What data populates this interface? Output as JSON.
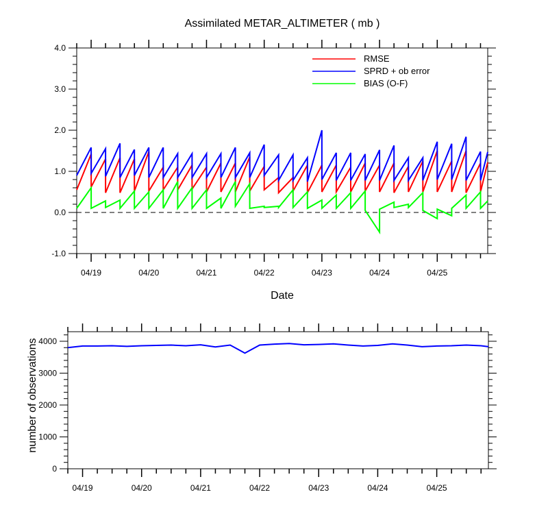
{
  "chart_data": [
    {
      "type": "line",
      "title": "Assimilated METAR_ALTIMETER ( mb )",
      "xlabel": "Date",
      "ylabel": "",
      "ylim": [
        -1.0,
        4.0
      ],
      "yticks": [
        -1.0,
        0.0,
        1.0,
        2.0,
        3.0,
        4.0
      ],
      "ytick_labels": [
        "-1.0",
        "0.0",
        "1.0",
        "2.0",
        "3.0",
        "4.0"
      ],
      "xlim": [
        18.75,
        25.875
      ],
      "xticks": [
        19,
        20,
        21,
        22,
        23,
        24,
        25
      ],
      "xtick_labels": [
        "04/19",
        "04/20",
        "04/21",
        "04/22",
        "04/23",
        "04/24",
        "04/25"
      ],
      "reference_line": {
        "y": 0.0,
        "style": "dashed"
      },
      "legend": {
        "position": "top-right"
      },
      "series": [
        {
          "name": "RMSE",
          "color": "#ff0000",
          "x": [
            18.75,
            19.0,
            19.0,
            19.25,
            19.25,
            19.5,
            19.5,
            19.75,
            19.75,
            20.0,
            20.0,
            20.25,
            20.25,
            20.5,
            20.5,
            20.75,
            20.75,
            21.0,
            21.0,
            21.25,
            21.25,
            21.5,
            21.5,
            21.75,
            21.75,
            22.0,
            22.0,
            22.25,
            22.25,
            22.5,
            22.5,
            22.75,
            22.75,
            23.0,
            23.0,
            23.25,
            23.25,
            23.5,
            23.5,
            23.75,
            23.75,
            24.0,
            24.0,
            24.25,
            24.25,
            24.5,
            24.5,
            24.75,
            24.75,
            25.0,
            25.0,
            25.25,
            25.25,
            25.5,
            25.5,
            25.75,
            25.75,
            25.875
          ],
          "y": [
            0.55,
            1.42,
            0.62,
            1.3,
            0.48,
            1.33,
            0.48,
            1.3,
            0.52,
            1.48,
            0.52,
            1.1,
            0.55,
            1.1,
            0.55,
            1.15,
            0.57,
            1.1,
            0.5,
            1.2,
            0.5,
            1.2,
            0.5,
            1.35,
            0.52,
            1.12,
            0.55,
            0.85,
            0.48,
            0.85,
            0.52,
            1.15,
            0.48,
            1.15,
            0.5,
            1.15,
            0.5,
            1.1,
            0.5,
            1.2,
            0.52,
            1.15,
            0.5,
            1.2,
            0.48,
            1.12,
            0.5,
            1.25,
            0.5,
            1.5,
            0.5,
            1.25,
            0.5,
            1.5,
            0.48,
            1.2,
            0.5,
            1.22
          ]
        },
        {
          "name": "SPRD + ob error",
          "color": "#0000ff",
          "x": [
            18.75,
            19.0,
            19.0,
            19.25,
            19.25,
            19.5,
            19.5,
            19.75,
            19.75,
            20.0,
            20.0,
            20.25,
            20.25,
            20.5,
            20.5,
            20.75,
            20.75,
            21.0,
            21.0,
            21.25,
            21.25,
            21.5,
            21.5,
            21.75,
            21.75,
            22.0,
            22.0,
            22.25,
            22.25,
            22.5,
            22.5,
            22.75,
            22.75,
            23.0,
            23.0,
            23.25,
            23.25,
            23.5,
            23.5,
            23.75,
            23.75,
            24.0,
            24.0,
            24.25,
            24.25,
            24.5,
            24.5,
            24.75,
            24.75,
            25.0,
            25.0,
            25.25,
            25.25,
            25.5,
            25.5,
            25.75,
            25.75,
            25.875
          ],
          "y": [
            0.9,
            1.58,
            0.95,
            1.55,
            0.88,
            1.68,
            0.85,
            1.53,
            0.9,
            1.58,
            0.85,
            1.58,
            0.85,
            1.43,
            0.85,
            1.43,
            0.85,
            1.43,
            0.85,
            1.43,
            0.85,
            1.58,
            0.85,
            1.45,
            0.85,
            1.65,
            0.9,
            1.4,
            0.78,
            1.4,
            0.78,
            1.33,
            0.75,
            2.0,
            0.8,
            1.45,
            0.78,
            1.45,
            0.78,
            1.42,
            0.78,
            1.52,
            0.78,
            1.63,
            0.78,
            1.33,
            0.78,
            1.33,
            0.78,
            1.72,
            0.8,
            1.67,
            0.8,
            1.84,
            0.78,
            1.48,
            0.78,
            1.47
          ]
        },
        {
          "name": "BIAS (O-F)",
          "color": "#00ff00",
          "x": [
            18.75,
            19.0,
            19.0,
            19.25,
            19.25,
            19.5,
            19.5,
            19.75,
            19.75,
            20.0,
            20.0,
            20.25,
            20.25,
            20.5,
            20.5,
            20.75,
            20.75,
            21.0,
            21.0,
            21.25,
            21.25,
            21.5,
            21.5,
            21.75,
            21.75,
            22.0,
            22.0,
            22.25,
            22.25,
            22.5,
            22.5,
            22.75,
            22.75,
            23.0,
            23.0,
            23.25,
            23.25,
            23.5,
            23.5,
            23.75,
            23.75,
            24.0,
            24.0,
            24.25,
            24.25,
            24.5,
            24.5,
            24.75,
            24.75,
            25.0,
            25.0,
            25.25,
            25.25,
            25.5,
            25.5,
            25.75,
            25.75,
            25.875
          ],
          "y": [
            0.1,
            0.6,
            0.1,
            0.28,
            0.12,
            0.3,
            0.1,
            0.52,
            0.1,
            0.5,
            0.1,
            0.55,
            0.1,
            0.75,
            0.1,
            0.6,
            0.1,
            0.55,
            0.1,
            0.35,
            0.1,
            0.75,
            0.15,
            0.7,
            0.1,
            0.15,
            0.12,
            0.15,
            0.12,
            0.55,
            0.12,
            0.5,
            0.1,
            0.3,
            0.1,
            0.42,
            0.1,
            0.48,
            0.1,
            0.52,
            0.05,
            -0.48,
            0.08,
            0.25,
            0.12,
            0.2,
            0.12,
            0.48,
            0.05,
            -0.15,
            0.08,
            -0.08,
            0.1,
            0.42,
            0.1,
            0.5,
            0.1,
            0.28
          ]
        }
      ]
    },
    {
      "type": "line",
      "title": "",
      "xlabel": "",
      "ylabel": "number of observations",
      "ylim": [
        0,
        4300
      ],
      "yticks": [
        0,
        1000,
        2000,
        3000,
        4000
      ],
      "ytick_labels": [
        "0",
        "1000",
        "2000",
        "3000",
        "4000"
      ],
      "xlim": [
        18.75,
        25.875
      ],
      "xticks": [
        19,
        20,
        21,
        22,
        23,
        24,
        25
      ],
      "xtick_labels": [
        "04/19",
        "04/20",
        "04/21",
        "04/22",
        "04/23",
        "04/24",
        "04/25"
      ],
      "series": [
        {
          "color": "#0000ff",
          "x": [
            18.75,
            19.0,
            19.25,
            19.5,
            19.75,
            20.0,
            20.25,
            20.5,
            20.75,
            21.0,
            21.25,
            21.5,
            21.75,
            22.0,
            22.25,
            22.5,
            22.75,
            23.0,
            23.25,
            23.5,
            23.75,
            24.0,
            24.25,
            24.5,
            24.75,
            25.0,
            25.25,
            25.5,
            25.75,
            25.875
          ],
          "y": [
            3800,
            3850,
            3850,
            3860,
            3840,
            3860,
            3870,
            3880,
            3860,
            3890,
            3820,
            3880,
            3630,
            3880,
            3910,
            3930,
            3890,
            3900,
            3920,
            3880,
            3850,
            3870,
            3920,
            3880,
            3830,
            3850,
            3860,
            3880,
            3860,
            3830
          ]
        }
      ]
    }
  ]
}
